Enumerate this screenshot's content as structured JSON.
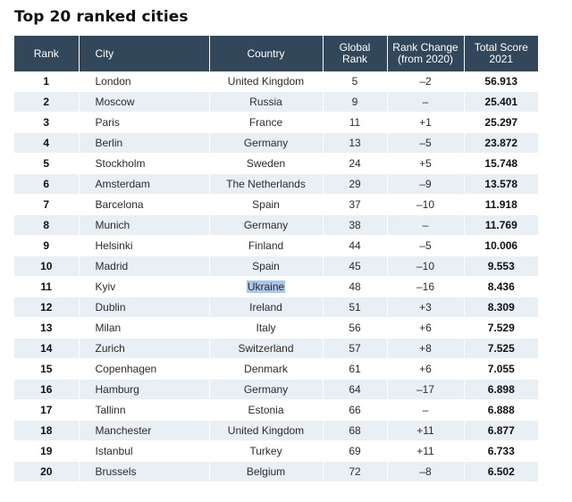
{
  "title": "Top 20 ranked cities",
  "table": {
    "headers": {
      "rank": "Rank",
      "city": "City",
      "country": "Country",
      "global_rank_line1": "Global",
      "global_rank_line2": "Rank",
      "rank_change_line1": "Rank Change",
      "rank_change_line2": "(from 2020)",
      "total_score_line1": "Total Score",
      "total_score_line2": "2021"
    },
    "rows": [
      {
        "rank": "1",
        "city": "London",
        "country": "United Kingdom",
        "global_rank": "5",
        "rank_change": "–2",
        "total_score": "56.913"
      },
      {
        "rank": "2",
        "city": "Moscow",
        "country": "Russia",
        "global_rank": "9",
        "rank_change": "–",
        "total_score": "25.401"
      },
      {
        "rank": "3",
        "city": "Paris",
        "country": "France",
        "global_rank": "11",
        "rank_change": "+1",
        "total_score": "25.297"
      },
      {
        "rank": "4",
        "city": "Berlin",
        "country": "Germany",
        "global_rank": "13",
        "rank_change": "–5",
        "total_score": "23.872"
      },
      {
        "rank": "5",
        "city": "Stockholm",
        "country": "Sweden",
        "global_rank": "24",
        "rank_change": "+5",
        "total_score": "15.748"
      },
      {
        "rank": "6",
        "city": "Amsterdam",
        "country": "The Netherlands",
        "global_rank": "29",
        "rank_change": "–9",
        "total_score": "13.578"
      },
      {
        "rank": "7",
        "city": "Barcelona",
        "country": "Spain",
        "global_rank": "37",
        "rank_change": "–10",
        "total_score": "11.918"
      },
      {
        "rank": "8",
        "city": "Munich",
        "country": "Germany",
        "global_rank": "38",
        "rank_change": "–",
        "total_score": "11.769"
      },
      {
        "rank": "9",
        "city": "Helsinki",
        "country": "Finland",
        "global_rank": "44",
        "rank_change": "–5",
        "total_score": "10.006"
      },
      {
        "rank": "10",
        "city": "Madrid",
        "country": "Spain",
        "global_rank": "45",
        "rank_change": "–10",
        "total_score": "9.553"
      },
      {
        "rank": "11",
        "city": "Kyiv",
        "country": "Ukraine",
        "global_rank": "48",
        "rank_change": "–16",
        "total_score": "8.436",
        "country_highlighted": true
      },
      {
        "rank": "12",
        "city": "Dublin",
        "country": "Ireland",
        "global_rank": "51",
        "rank_change": "+3",
        "total_score": "8.309"
      },
      {
        "rank": "13",
        "city": "Milan",
        "country": "Italy",
        "global_rank": "56",
        "rank_change": "+6",
        "total_score": "7.529"
      },
      {
        "rank": "14",
        "city": "Zurich",
        "country": "Switzerland",
        "global_rank": "57",
        "rank_change": "+8",
        "total_score": "7.525"
      },
      {
        "rank": "15",
        "city": "Copenhagen",
        "country": "Denmark",
        "global_rank": "61",
        "rank_change": "+6",
        "total_score": "7.055"
      },
      {
        "rank": "16",
        "city": "Hamburg",
        "country": "Germany",
        "global_rank": "64",
        "rank_change": "–17",
        "total_score": "6.898"
      },
      {
        "rank": "17",
        "city": "Tallinn",
        "country": "Estonia",
        "global_rank": "66",
        "rank_change": "–",
        "total_score": "6.888"
      },
      {
        "rank": "18",
        "city": "Manchester",
        "country": "United Kingdom",
        "global_rank": "68",
        "rank_change": "+11",
        "total_score": "6.877"
      },
      {
        "rank": "19",
        "city": "Istanbul",
        "country": "Turkey",
        "global_rank": "69",
        "rank_change": "+11",
        "total_score": "6.733"
      },
      {
        "rank": "20",
        "city": "Brussels",
        "country": "Belgium",
        "global_rank": "72",
        "rank_change": "–8",
        "total_score": "6.502"
      }
    ]
  },
  "colors": {
    "header_background": "#33475b",
    "header_text": "#ffffff",
    "row_stripe": "#e8eff5",
    "selection_highlight": "#a9c8ec"
  }
}
